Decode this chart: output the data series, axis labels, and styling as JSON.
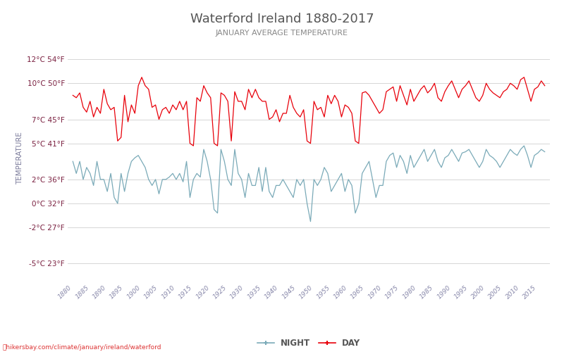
{
  "title": "Waterford Ireland 1880-2017",
  "subtitle": "JANUARY AVERAGE TEMPERATURE",
  "ylabel": "TEMPERATURE",
  "xlabel_url": "hikersbay.com/climate/january/ireland/waterford",
  "year_start": 1880,
  "year_end": 2017,
  "yticks_c": [
    -5,
    -2,
    0,
    2,
    5,
    7,
    10,
    12
  ],
  "yticks_f": [
    23,
    27,
    32,
    36,
    41,
    45,
    50,
    54
  ],
  "ylim": [
    -6.5,
    14.0
  ],
  "background_color": "#ffffff",
  "grid_color": "#d0d0d0",
  "day_color": "#e8000a",
  "night_color": "#7aaab8",
  "title_color": "#555555",
  "subtitle_color": "#888888",
  "ylabel_color": "#7a7a9a",
  "ytick_color": "#7a2040",
  "xtick_color": "#8888aa",
  "day_data": [
    9.0,
    8.8,
    9.2,
    8.0,
    7.6,
    8.5,
    7.2,
    8.0,
    7.5,
    9.5,
    8.3,
    7.8,
    8.0,
    5.2,
    5.5,
    9.0,
    6.8,
    8.2,
    7.5,
    9.8,
    10.5,
    9.8,
    9.5,
    8.0,
    8.2,
    7.0,
    7.8,
    8.0,
    7.5,
    8.2,
    7.8,
    8.5,
    7.8,
    8.5,
    5.0,
    4.8,
    8.8,
    8.5,
    9.8,
    9.2,
    8.8,
    5.0,
    4.8,
    9.2,
    9.0,
    8.5,
    5.2,
    9.3,
    8.5,
    8.5,
    7.8,
    9.5,
    8.8,
    9.5,
    8.8,
    8.5,
    8.5,
    7.0,
    7.2,
    7.8,
    6.8,
    7.5,
    7.5,
    9.0,
    8.0,
    7.5,
    7.2,
    7.8,
    5.2,
    5.0,
    8.5,
    7.8,
    8.0,
    7.2,
    9.0,
    8.3,
    9.0,
    8.5,
    7.2,
    8.2,
    8.0,
    7.5,
    5.2,
    5.0,
    9.2,
    9.3,
    9.0,
    8.5,
    8.0,
    7.5,
    7.8,
    9.3,
    9.5,
    9.7,
    8.5,
    9.8,
    9.0,
    8.2,
    9.5,
    8.5,
    9.0,
    9.5,
    9.8,
    9.2,
    9.5,
    10.0,
    8.8,
    8.5,
    9.3,
    9.8,
    10.2,
    9.5,
    8.8,
    9.5,
    9.8,
    10.2,
    9.5,
    8.8,
    8.5,
    9.0,
    10.0,
    9.5,
    9.2,
    9.0,
    8.8,
    9.3,
    9.5,
    10.0,
    9.8,
    9.5,
    10.3,
    10.5,
    9.5,
    8.5,
    9.5,
    9.7,
    10.2,
    9.8
  ],
  "night_data": [
    3.5,
    2.5,
    3.5,
    2.0,
    3.0,
    2.5,
    1.5,
    3.5,
    2.0,
    2.0,
    1.0,
    2.5,
    0.5,
    0.0,
    2.5,
    1.0,
    2.5,
    3.5,
    3.8,
    4.0,
    3.5,
    3.0,
    2.0,
    1.5,
    2.0,
    0.8,
    2.0,
    2.0,
    2.2,
    2.5,
    2.0,
    2.5,
    1.8,
    3.5,
    0.5,
    2.0,
    2.5,
    2.2,
    4.5,
    3.5,
    2.0,
    -0.5,
    -0.8,
    4.5,
    3.5,
    2.0,
    1.5,
    4.5,
    2.5,
    2.0,
    0.5,
    2.5,
    1.5,
    1.5,
    3.0,
    1.0,
    3.0,
    1.0,
    0.5,
    1.5,
    1.5,
    2.0,
    1.5,
    1.0,
    0.5,
    2.0,
    1.5,
    2.0,
    0.0,
    -1.5,
    2.0,
    1.5,
    2.0,
    3.0,
    2.5,
    1.0,
    1.5,
    2.0,
    2.5,
    1.0,
    2.0,
    1.5,
    -0.8,
    0.0,
    2.5,
    3.0,
    3.5,
    2.0,
    0.5,
    1.5,
    1.5,
    3.5,
    4.0,
    4.2,
    3.0,
    4.0,
    3.5,
    2.5,
    4.0,
    3.0,
    3.5,
    4.0,
    4.5,
    3.5,
    4.0,
    4.5,
    3.5,
    3.0,
    3.8,
    4.0,
    4.5,
    4.0,
    3.5,
    4.2,
    4.3,
    4.5,
    4.0,
    3.5,
    3.0,
    3.5,
    4.5,
    4.0,
    3.8,
    3.5,
    3.0,
    3.5,
    4.0,
    4.5,
    4.2,
    4.0,
    4.5,
    4.8,
    4.0,
    3.0,
    4.0,
    4.2,
    4.5,
    4.3
  ]
}
